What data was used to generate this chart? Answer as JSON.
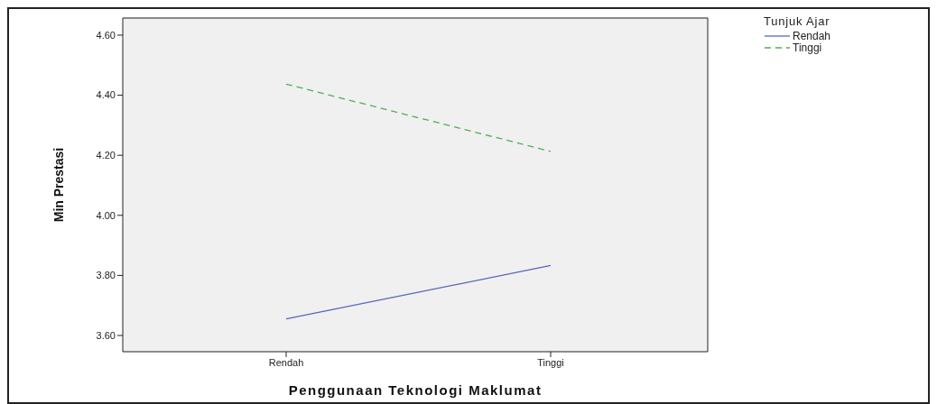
{
  "chart_data": {
    "type": "line",
    "xlabel": "Penggunaan Teknologi Maklumat",
    "ylabel": "Min Prestasi",
    "legend_title": "Tunjuk Ajar",
    "categories": [
      "Rendah",
      "Tinggi"
    ],
    "series": [
      {
        "name": "Rendah",
        "color": "#5566bb",
        "line_style": "solid",
        "values": [
          3.655,
          3.833
        ]
      },
      {
        "name": "Tinggi",
        "color": "#4cb050",
        "line_style": "dashed",
        "values": [
          4.437,
          4.213
        ]
      }
    ],
    "ylim": [
      3.546,
      4.657
    ],
    "yticks": [
      {
        "value": 3.6,
        "label": "3.60"
      },
      {
        "value": 3.8,
        "label": "3.80"
      },
      {
        "value": 4.0,
        "label": "4.00"
      },
      {
        "value": 4.2,
        "label": "4.20"
      },
      {
        "value": 4.4,
        "label": "4.40"
      },
      {
        "value": 4.6,
        "label": "4.60"
      }
    ],
    "grid": false,
    "legend": "top right",
    "marker": "none"
  }
}
